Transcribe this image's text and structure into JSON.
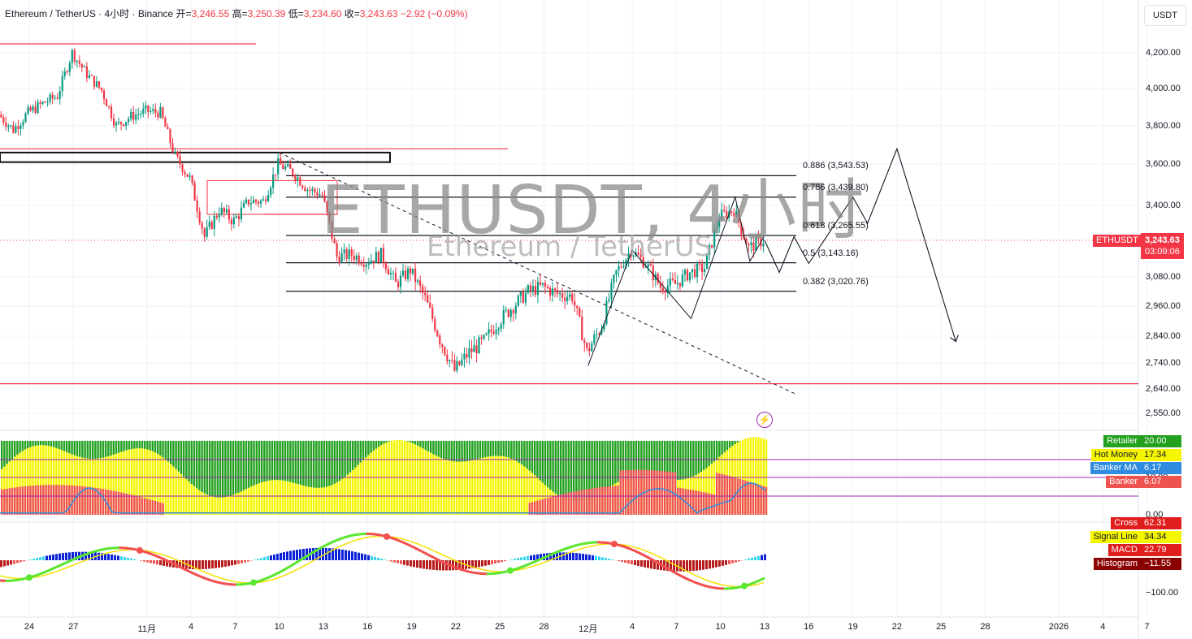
{
  "legend": {
    "symbol": "Ethereum / TetherUS · 4小时 · Binance",
    "open_label": "开=",
    "open": "3,246.55",
    "high_label": "高=",
    "high": "3,250.39",
    "low_label": "低=",
    "low": "3,234.60",
    "close_label": "收=",
    "close": "3,243.63",
    "change": "−2.92 (−0.09%)"
  },
  "watermark": {
    "title": "ETHUSDT, 4小时",
    "subtitle": "Ethereum / TetherUS"
  },
  "currency_button": "USDT",
  "price_axis": [
    "4,200.00",
    "4,000.00",
    "3,800.00",
    "3,600.00",
    "3,400.00",
    "3,080.00",
    "2,960.00",
    "2,840.00",
    "2,740.00",
    "2,640.00",
    "2,550.00"
  ],
  "last_price": {
    "symbol": "ETHUSDT",
    "price": "3,243.63",
    "countdown": "03:09:06"
  },
  "fib_levels": [
    {
      "label": "0.886 (3,543.53)"
    },
    {
      "label": "0.786 (3,439.80)"
    },
    {
      "label": "0.618 (3,265.55)"
    },
    {
      "label": "0.5 (3,143.16)"
    },
    {
      "label": "0.382 (3,020.76)"
    }
  ],
  "x_ticks": [
    "24",
    "27",
    "11月",
    "4",
    "7",
    "10",
    "13",
    "16",
    "19",
    "22",
    "25",
    "28",
    "12月",
    "4",
    "7",
    "10",
    "13",
    "16",
    "19",
    "22",
    "25",
    "28",
    "2026",
    "4",
    "7"
  ],
  "indicator1": {
    "tags": [
      {
        "name": "Retailer",
        "value": "20.00",
        "color": "#22a01e"
      },
      {
        "name": "Hot Money",
        "value": "17.34",
        "color": "#f5f500"
      },
      {
        "name": "Banker MA",
        "value": "6.17",
        "color": "#2f8ce0"
      },
      {
        "name": "Banker",
        "value": "6.07",
        "color": "#ef5350"
      }
    ],
    "axis": [
      "10.00",
      "0.00"
    ]
  },
  "indicator2": {
    "tags": [
      {
        "name": "Cross",
        "value": "62.31",
        "color": "#e01e1e"
      },
      {
        "name": "Signal Line",
        "value": "34.34",
        "color": "#f5f500"
      },
      {
        "name": "MACD",
        "value": "22.79",
        "color": "#e01e1e"
      },
      {
        "name": "Histogram",
        "value": "−11.55",
        "color": "#8b0000"
      }
    ],
    "axis": [
      "−100.00"
    ]
  },
  "chart_data": {
    "type": "candlestick",
    "title": "ETHUSDT, 4小时",
    "x_range": [
      "10-24",
      "2026-01-07"
    ],
    "y_range": [
      2550,
      4300
    ],
    "price_path": [
      {
        "date": "10-22",
        "price": 3860
      },
      {
        "date": "10-23",
        "price": 3780
      },
      {
        "date": "10-24",
        "price": 3870
      },
      {
        "date": "10-25",
        "price": 3920
      },
      {
        "date": "10-26",
        "price": 3960
      },
      {
        "date": "10-27",
        "price": 4200
      },
      {
        "date": "10-28",
        "price": 4080
      },
      {
        "date": "10-29",
        "price": 3990
      },
      {
        "date": "10-30",
        "price": 3800
      },
      {
        "date": "10-31",
        "price": 3850
      },
      {
        "date": "11-01",
        "price": 3880
      },
      {
        "date": "11-02",
        "price": 3870
      },
      {
        "date": "11-03",
        "price": 3640
      },
      {
        "date": "11-04",
        "price": 3530
      },
      {
        "date": "11-05",
        "price": 3260
      },
      {
        "date": "11-06",
        "price": 3380
      },
      {
        "date": "11-07",
        "price": 3330
      },
      {
        "date": "11-08",
        "price": 3420
      },
      {
        "date": "11-09",
        "price": 3420
      },
      {
        "date": "11-10",
        "price": 3600
      },
      {
        "date": "11-11",
        "price": 3560
      },
      {
        "date": "11-12",
        "price": 3480
      },
      {
        "date": "11-13",
        "price": 3450
      },
      {
        "date": "11-14",
        "price": 3170
      },
      {
        "date": "11-15",
        "price": 3180
      },
      {
        "date": "11-16",
        "price": 3150
      },
      {
        "date": "11-17",
        "price": 3180
      },
      {
        "date": "11-18",
        "price": 3050
      },
      {
        "date": "11-19",
        "price": 3110
      },
      {
        "date": "11-20",
        "price": 2990
      },
      {
        "date": "11-21",
        "price": 2830
      },
      {
        "date": "11-22",
        "price": 2710
      },
      {
        "date": "11-23",
        "price": 2780
      },
      {
        "date": "11-24",
        "price": 2820
      },
      {
        "date": "11-25",
        "price": 2900
      },
      {
        "date": "11-26",
        "price": 2960
      },
      {
        "date": "11-27",
        "price": 3020
      },
      {
        "date": "11-28",
        "price": 3040
      },
      {
        "date": "11-29",
        "price": 3010
      },
      {
        "date": "11-30",
        "price": 3000
      },
      {
        "date": "12-01",
        "price": 2780
      },
      {
        "date": "12-02",
        "price": 2880
      },
      {
        "date": "12-03",
        "price": 3100
      },
      {
        "date": "12-04",
        "price": 3200
      },
      {
        "date": "12-05",
        "price": 3140
      },
      {
        "date": "12-06",
        "price": 3040
      },
      {
        "date": "12-07",
        "price": 3050
      },
      {
        "date": "12-08",
        "price": 3100
      },
      {
        "date": "12-09",
        "price": 3120
      },
      {
        "date": "12-10",
        "price": 3350
      },
      {
        "date": "12-11",
        "price": 3380
      },
      {
        "date": "12-12",
        "price": 3210
      },
      {
        "date": "12-13",
        "price": 3243.63
      }
    ],
    "forecast_path": [
      {
        "date": "12-13",
        "price": 3243.63
      },
      {
        "date": "12-14",
        "price": 3100
      },
      {
        "date": "12-15",
        "price": 3260
      },
      {
        "date": "12-16",
        "price": 3140
      },
      {
        "date": "12-19",
        "price": 3440
      },
      {
        "date": "12-20",
        "price": 3320
      },
      {
        "date": "12-22",
        "price": 3680
      },
      {
        "date": "12-26",
        "price": 2820
      }
    ],
    "fib_retracement": [
      {
        "level": 0.886,
        "price": 3543.53
      },
      {
        "level": 0.786,
        "price": 3439.8
      },
      {
        "level": 0.618,
        "price": 3265.55
      },
      {
        "level": 0.5,
        "price": 3143.16
      },
      {
        "level": 0.382,
        "price": 3020.76
      }
    ],
    "horizontal_lines": [
      4250,
      3680,
      3610,
      3360,
      2660
    ],
    "last_price": 3243.63,
    "grid": true,
    "indicators": [
      {
        "name": "Banker / Hot Money / Retailer",
        "values": {
          "Retailer": 20.0,
          "Hot Money": 17.34,
          "Banker MA": 6.17,
          "Banker": 6.07
        }
      },
      {
        "name": "MACD",
        "values": {
          "Cross": 62.31,
          "Signal Line": 34.34,
          "MACD": 22.79,
          "Histogram": -11.55
        }
      }
    ]
  }
}
